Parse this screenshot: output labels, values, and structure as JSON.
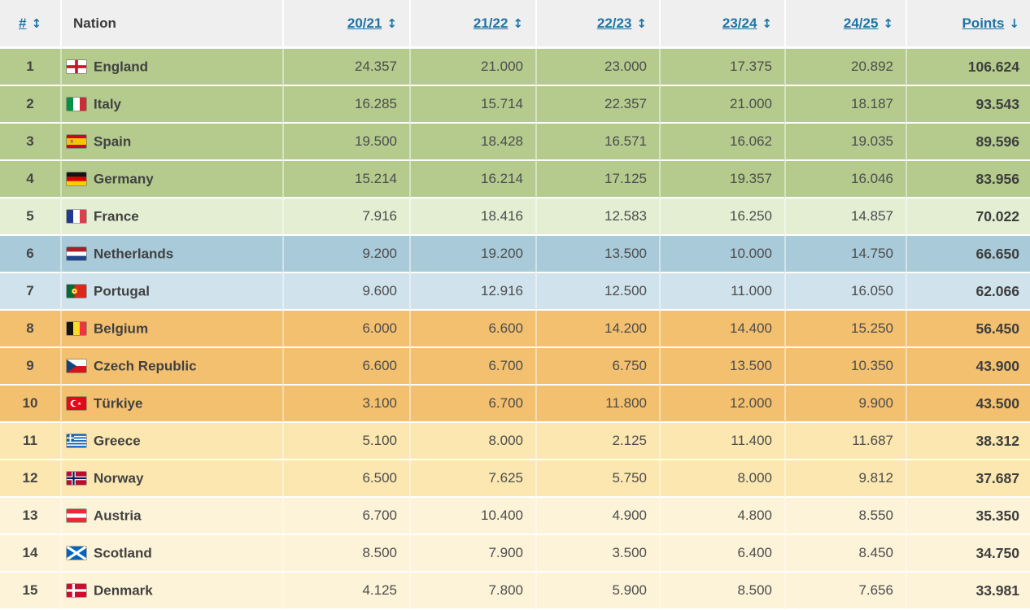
{
  "colors": {
    "header_bg": "#f0efef",
    "link_blue": "#1d74a4",
    "tier_green": "#b4cb8d",
    "tier_green_light": "#e4eed2",
    "tier_blue": "#a9cad9",
    "tier_blue_light": "#d0e2eb",
    "tier_orange": "#f3c06f",
    "tier_yellow": "#fbe7af",
    "tier_cream": "#fdf3d8"
  },
  "icons": {
    "sort_updown": "↕",
    "sort_down": "↓"
  },
  "table": {
    "headers": {
      "rank": {
        "label": "#"
      },
      "nation": {
        "label": "Nation"
      },
      "seasons": [
        {
          "label": "20/21"
        },
        {
          "label": "21/22"
        },
        {
          "label": "22/23"
        },
        {
          "label": "23/24"
        },
        {
          "label": "24/25"
        }
      ],
      "points": {
        "label": "Points"
      }
    },
    "tier_colors": {
      "green": "#b4cb8d",
      "green_light": "#e4eed2",
      "blue": "#a9cad9",
      "blue_light": "#d0e2eb",
      "orange": "#f3c06f",
      "yellow": "#fbe7af",
      "cream": "#fdf3d8"
    },
    "rows": [
      {
        "rank": "1",
        "nation": "England",
        "flag": "england",
        "tier": "green",
        "values": [
          "24.357",
          "21.000",
          "23.000",
          "17.375",
          "20.892"
        ],
        "points": "106.624"
      },
      {
        "rank": "2",
        "nation": "Italy",
        "flag": "italy",
        "tier": "green",
        "values": [
          "16.285",
          "15.714",
          "22.357",
          "21.000",
          "18.187"
        ],
        "points": "93.543"
      },
      {
        "rank": "3",
        "nation": "Spain",
        "flag": "spain",
        "tier": "green",
        "values": [
          "19.500",
          "18.428",
          "16.571",
          "16.062",
          "19.035"
        ],
        "points": "89.596"
      },
      {
        "rank": "4",
        "nation": "Germany",
        "flag": "germany",
        "tier": "green",
        "values": [
          "15.214",
          "16.214",
          "17.125",
          "19.357",
          "16.046"
        ],
        "points": "83.956"
      },
      {
        "rank": "5",
        "nation": "France",
        "flag": "france",
        "tier": "green_light",
        "values": [
          "7.916",
          "18.416",
          "12.583",
          "16.250",
          "14.857"
        ],
        "points": "70.022"
      },
      {
        "rank": "6",
        "nation": "Netherlands",
        "flag": "netherlands",
        "tier": "blue",
        "values": [
          "9.200",
          "19.200",
          "13.500",
          "10.000",
          "14.750"
        ],
        "points": "66.650"
      },
      {
        "rank": "7",
        "nation": "Portugal",
        "flag": "portugal",
        "tier": "blue_light",
        "values": [
          "9.600",
          "12.916",
          "12.500",
          "11.000",
          "16.050"
        ],
        "points": "62.066"
      },
      {
        "rank": "8",
        "nation": "Belgium",
        "flag": "belgium",
        "tier": "orange",
        "values": [
          "6.000",
          "6.600",
          "14.200",
          "14.400",
          "15.250"
        ],
        "points": "56.450"
      },
      {
        "rank": "9",
        "nation": "Czech Republic",
        "flag": "czechia",
        "tier": "orange",
        "values": [
          "6.600",
          "6.700",
          "6.750",
          "13.500",
          "10.350"
        ],
        "points": "43.900"
      },
      {
        "rank": "10",
        "nation": "Türkiye",
        "flag": "turkiye",
        "tier": "orange",
        "values": [
          "3.100",
          "6.700",
          "11.800",
          "12.000",
          "9.900"
        ],
        "points": "43.500"
      },
      {
        "rank": "11",
        "nation": "Greece",
        "flag": "greece",
        "tier": "yellow",
        "values": [
          "5.100",
          "8.000",
          "2.125",
          "11.400",
          "11.687"
        ],
        "points": "38.312"
      },
      {
        "rank": "12",
        "nation": "Norway",
        "flag": "norway",
        "tier": "yellow",
        "values": [
          "6.500",
          "7.625",
          "5.750",
          "8.000",
          "9.812"
        ],
        "points": "37.687"
      },
      {
        "rank": "13",
        "nation": "Austria",
        "flag": "austria",
        "tier": "cream",
        "values": [
          "6.700",
          "10.400",
          "4.900",
          "4.800",
          "8.550"
        ],
        "points": "35.350"
      },
      {
        "rank": "14",
        "nation": "Scotland",
        "flag": "scotland",
        "tier": "cream",
        "values": [
          "8.500",
          "7.900",
          "3.500",
          "6.400",
          "8.450"
        ],
        "points": "34.750"
      },
      {
        "rank": "15",
        "nation": "Denmark",
        "flag": "denmark",
        "tier": "cream",
        "values": [
          "4.125",
          "7.800",
          "5.900",
          "8.500",
          "7.656"
        ],
        "points": "33.981"
      }
    ]
  }
}
